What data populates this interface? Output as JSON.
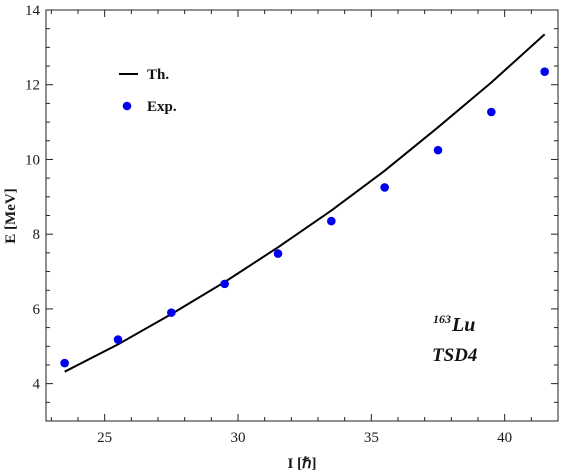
{
  "chart_data": {
    "type": "line",
    "xlabel": "I [ℏ]",
    "ylabel": "E [MeV]",
    "xlim": [
      22.8,
      42.0
    ],
    "ylim": [
      3.0,
      14.0
    ],
    "xticks": [
      25,
      30,
      35,
      40
    ],
    "yticks": [
      4,
      6,
      8,
      10,
      12,
      14
    ],
    "grid": false,
    "legend_position": "top-left",
    "series": [
      {
        "name": "Th.",
        "style": "line",
        "color": "#000000",
        "x": [
          23.5,
          25.5,
          27.5,
          29.5,
          31.5,
          33.5,
          35.5,
          37.5,
          39.5,
          41.5
        ],
        "y": [
          4.32,
          5.05,
          5.86,
          6.72,
          7.65,
          8.63,
          9.7,
          10.86,
          12.06,
          13.35
        ]
      },
      {
        "name": "Exp.",
        "style": "marker",
        "color": "#0000ee",
        "x": [
          23.5,
          25.5,
          27.5,
          29.5,
          31.5,
          33.5,
          35.5,
          37.5,
          39.5,
          41.5
        ],
        "y": [
          4.55,
          5.18,
          5.9,
          6.67,
          7.48,
          8.35,
          9.25,
          10.25,
          11.27,
          12.35
        ]
      }
    ],
    "annotations": {
      "nucleus_mass": "163",
      "nucleus_symbol": "Lu",
      "band": "TSD4"
    }
  }
}
